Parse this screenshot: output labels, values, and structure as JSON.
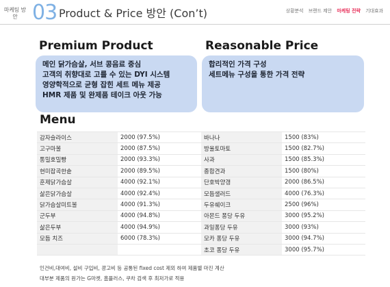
{
  "header": {
    "section_label": "마케팅 방안",
    "section_number": "03",
    "title": "Product & Price 방안 (Con’t)",
    "nav": [
      "상황분석",
      "브랜드 제안",
      "마케팅 전략",
      "기대효과"
    ],
    "nav_active_index": 2
  },
  "premium": {
    "title": "Premium Product",
    "lines": [
      "메인 닭가슴살, 서브 콩음료 중심",
      "고객의 취향대로 고를 수 있는 DYI 시스템",
      "영양학적으로 균형 잡힌 세트 메뉴 제공",
      "HMR 제품 및 완제품 테이크 아웃 가능"
    ]
  },
  "price": {
    "title": "Reasonable Price",
    "lines": [
      "합리적인 가격 구성",
      "세트메뉴 구성을 통한 가격 전략"
    ]
  },
  "menu": {
    "title": "Menu",
    "rows": [
      [
        "감자슬라이스",
        "2000 (97.5%)",
        "바나나",
        "1500 (83%)"
      ],
      [
        "고구마볼",
        "2000 (87.5%)",
        "방울토마토",
        "1500 (82.7%)"
      ],
      [
        "통밀호밀빵",
        "2000 (93.3%)",
        "사과",
        "1500 (85.3%)"
      ],
      [
        "현미잡곡한솥",
        "2000 (89.5%)",
        "종합견과",
        "1500 (80%)"
      ],
      [
        "훈제닭가슴살",
        "4000 (92.1%)",
        "단호박양갱",
        "2000 (86.5%)"
      ],
      [
        "삶은닭가슴살",
        "4000 (92.4%)",
        "모듬샐러드",
        "4000 (76.3%)"
      ],
      [
        "닭가슴살미트볼",
        "4000  (91.3%)",
        "두유쉐이크",
        "2500 (96%)"
      ],
      [
        "군두부",
        "4000 (94.8%)",
        "아몬드 퐁당 두유",
        "3000 (95.2%)"
      ],
      [
        "삶은두부",
        "4000 (94.9%)",
        "과일퐁당 두유",
        "3000 (93%)"
      ],
      [
        "모듬 치즈",
        "6000 (78.3%)",
        "모카 퐁당 두유",
        "3000 (94.7%)"
      ],
      [
        "",
        "",
        "초코 퐁당 두유",
        "3000 (95.7%)"
      ]
    ]
  },
  "notes": [
    "인건비,대여비, 설비 구입비, 광고비 등 공통된 fixed cost 제외 하여 제품별 마진 계산",
    "대부분 제품의 원가는 G마켓, 홈플러스, 쿠차 검색 후 최저가로 적용"
  ],
  "colors": {
    "accent_blue": "#7fb1e4",
    "box_fill": "#c9d9f2",
    "nav_active": "#e8325c"
  }
}
